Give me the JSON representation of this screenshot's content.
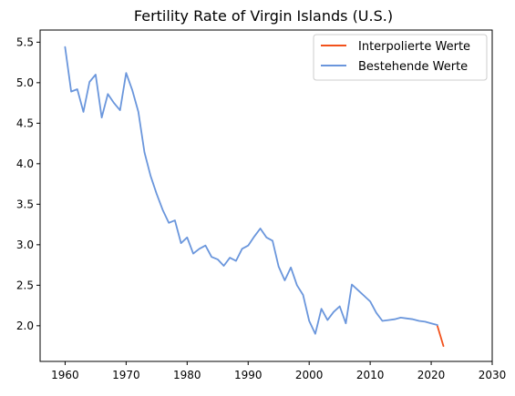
{
  "chart_data": {
    "type": "line",
    "title": "Fertility Rate of Virgin Islands (U.S.)",
    "xlabel": "",
    "ylabel": "",
    "xlim": [
      1955.9,
      2030
    ],
    "ylim": [
      1.56,
      5.65
    ],
    "xticks": [
      1960,
      1970,
      1980,
      1990,
      2000,
      2010,
      2020,
      2030
    ],
    "yticks": [
      2.0,
      2.5,
      3.0,
      3.5,
      4.0,
      4.5,
      5.0,
      5.5
    ],
    "grid": false,
    "legend_position": "top-right",
    "series": [
      {
        "name": "Interpolierte Werte",
        "color": "#f2511b",
        "x": [
          2021,
          2022
        ],
        "y": [
          2.0,
          1.75
        ]
      },
      {
        "name": "Bestehende Werte",
        "color": "#6a96dc",
        "x": [
          1960,
          1961,
          1962,
          1963,
          1964,
          1965,
          1966,
          1967,
          1968,
          1969,
          1970,
          1971,
          1972,
          1973,
          1974,
          1975,
          1976,
          1977,
          1978,
          1979,
          1980,
          1981,
          1982,
          1983,
          1984,
          1985,
          1986,
          1987,
          1988,
          1989,
          1990,
          1991,
          1992,
          1993,
          1994,
          1995,
          1996,
          1997,
          1998,
          1999,
          2000,
          2001,
          2002,
          2003,
          2004,
          2005,
          2006,
          2007,
          2008,
          2009,
          2010,
          2011,
          2012,
          2013,
          2014,
          2015,
          2016,
          2017,
          2018,
          2019,
          2020,
          2021
        ],
        "y": [
          5.44,
          4.89,
          4.92,
          4.64,
          5.01,
          5.1,
          4.57,
          4.86,
          4.75,
          4.66,
          5.12,
          4.91,
          4.64,
          4.14,
          3.85,
          3.63,
          3.43,
          3.27,
          3.3,
          3.02,
          3.09,
          2.89,
          2.95,
          2.99,
          2.85,
          2.82,
          2.74,
          2.84,
          2.8,
          2.95,
          2.99,
          3.1,
          3.2,
          3.09,
          3.05,
          2.73,
          2.56,
          2.72,
          2.5,
          2.38,
          2.06,
          1.9,
          2.21,
          2.07,
          2.17,
          2.24,
          2.03,
          2.51,
          2.44,
          2.37,
          2.3,
          2.16,
          2.06,
          2.07,
          2.08,
          2.1,
          2.09,
          2.08,
          2.06,
          2.05,
          2.03,
          2.01
        ]
      }
    ]
  }
}
